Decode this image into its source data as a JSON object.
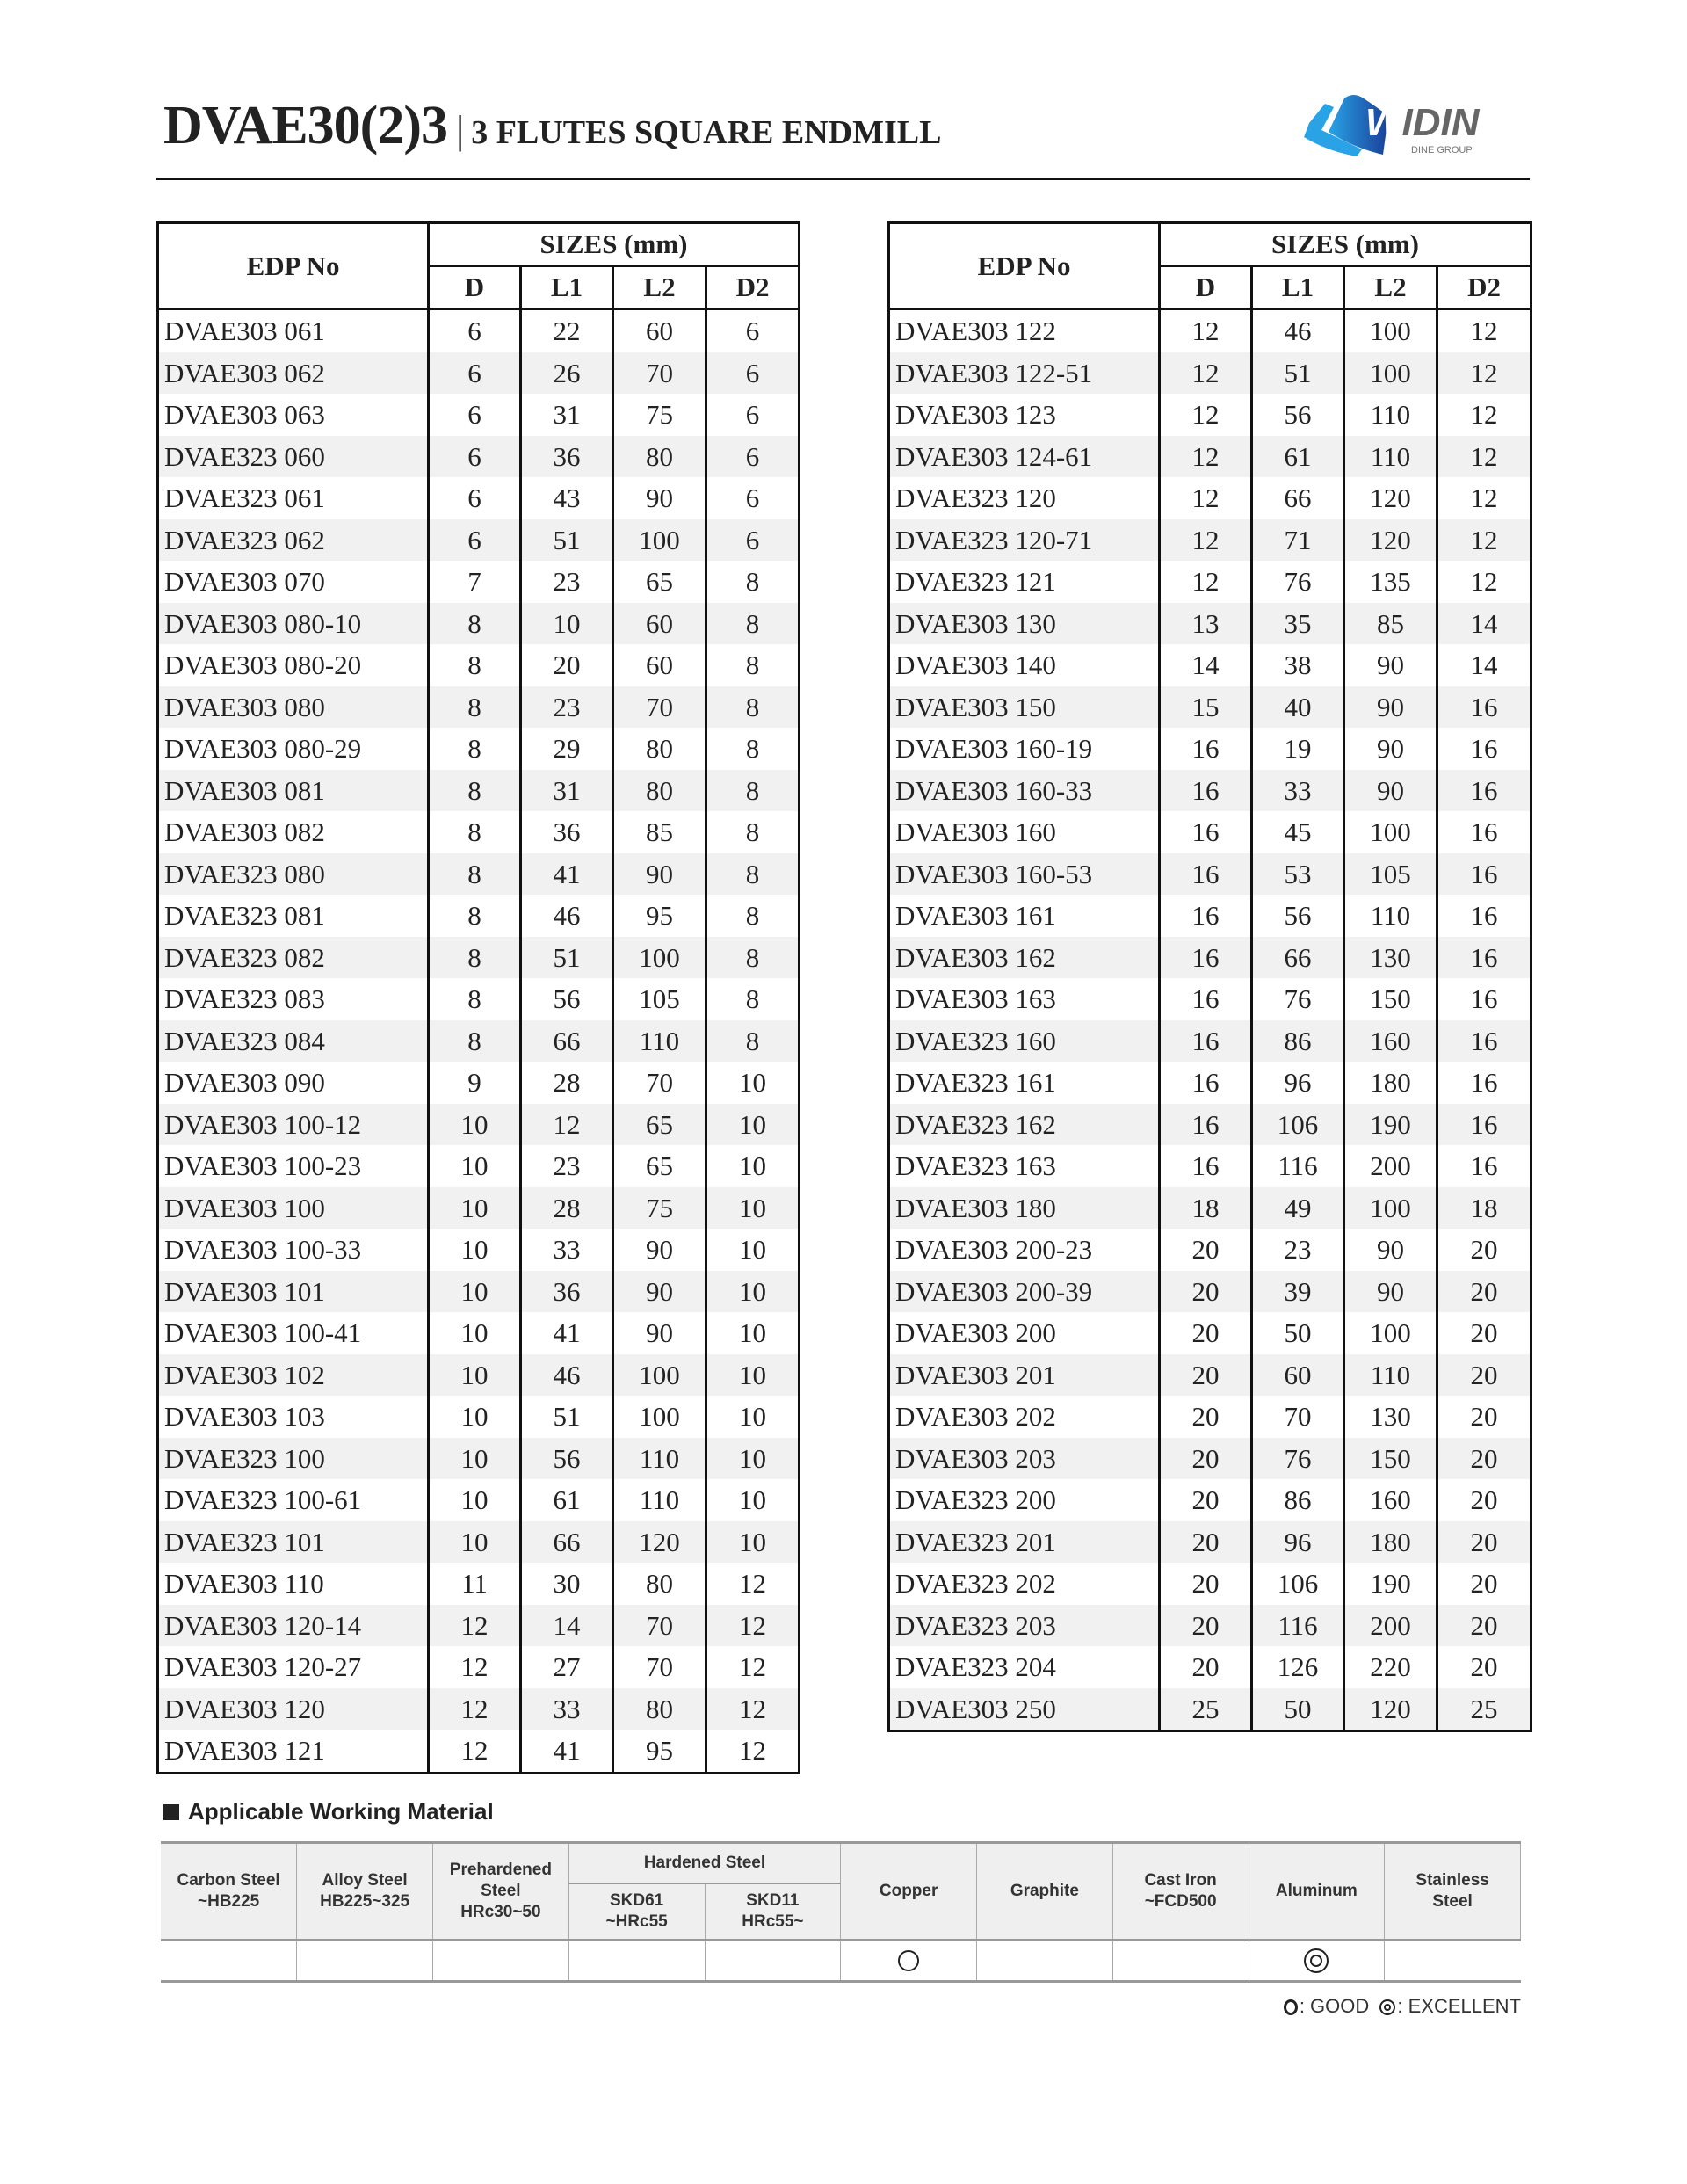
{
  "header": {
    "code": "DVAE30(2)3",
    "separator": "|",
    "subtitle": "3 FLUTES SQUARE ENDMILL",
    "logo": {
      "text": "WIDIN",
      "tagline": "DINE GROUP",
      "colors": [
        "#29a3e6",
        "#1a4fa8",
        "#666666"
      ]
    }
  },
  "size_table": {
    "edp_header": "EDP No",
    "sizes_header": "SIZES (mm)",
    "columns": [
      "D",
      "L1",
      "L2",
      "D2"
    ]
  },
  "left_rows": [
    [
      "DVAE303 061",
      "6",
      "22",
      "60",
      "6"
    ],
    [
      "DVAE303 062",
      "6",
      "26",
      "70",
      "6"
    ],
    [
      "DVAE303 063",
      "6",
      "31",
      "75",
      "6"
    ],
    [
      "DVAE323 060",
      "6",
      "36",
      "80",
      "6"
    ],
    [
      "DVAE323 061",
      "6",
      "43",
      "90",
      "6"
    ],
    [
      "DVAE323 062",
      "6",
      "51",
      "100",
      "6"
    ],
    [
      "DVAE303 070",
      "7",
      "23",
      "65",
      "8"
    ],
    [
      "DVAE303 080-10",
      "8",
      "10",
      "60",
      "8"
    ],
    [
      "DVAE303 080-20",
      "8",
      "20",
      "60",
      "8"
    ],
    [
      "DVAE303 080",
      "8",
      "23",
      "70",
      "8"
    ],
    [
      "DVAE303 080-29",
      "8",
      "29",
      "80",
      "8"
    ],
    [
      "DVAE303 081",
      "8",
      "31",
      "80",
      "8"
    ],
    [
      "DVAE303 082",
      "8",
      "36",
      "85",
      "8"
    ],
    [
      "DVAE323 080",
      "8",
      "41",
      "90",
      "8"
    ],
    [
      "DVAE323 081",
      "8",
      "46",
      "95",
      "8"
    ],
    [
      "DVAE323 082",
      "8",
      "51",
      "100",
      "8"
    ],
    [
      "DVAE323 083",
      "8",
      "56",
      "105",
      "8"
    ],
    [
      "DVAE323 084",
      "8",
      "66",
      "110",
      "8"
    ],
    [
      "DVAE303 090",
      "9",
      "28",
      "70",
      "10"
    ],
    [
      "DVAE303 100-12",
      "10",
      "12",
      "65",
      "10"
    ],
    [
      "DVAE303 100-23",
      "10",
      "23",
      "65",
      "10"
    ],
    [
      "DVAE303 100",
      "10",
      "28",
      "75",
      "10"
    ],
    [
      "DVAE303 100-33",
      "10",
      "33",
      "90",
      "10"
    ],
    [
      "DVAE303 101",
      "10",
      "36",
      "90",
      "10"
    ],
    [
      "DVAE303 100-41",
      "10",
      "41",
      "90",
      "10"
    ],
    [
      "DVAE303 102",
      "10",
      "46",
      "100",
      "10"
    ],
    [
      "DVAE303 103",
      "10",
      "51",
      "100",
      "10"
    ],
    [
      "DVAE323 100",
      "10",
      "56",
      "110",
      "10"
    ],
    [
      "DVAE323 100-61",
      "10",
      "61",
      "110",
      "10"
    ],
    [
      "DVAE323 101",
      "10",
      "66",
      "120",
      "10"
    ],
    [
      "DVAE303 110",
      "11",
      "30",
      "80",
      "12"
    ],
    [
      "DVAE303 120-14",
      "12",
      "14",
      "70",
      "12"
    ],
    [
      "DVAE303 120-27",
      "12",
      "27",
      "70",
      "12"
    ],
    [
      "DVAE303 120",
      "12",
      "33",
      "80",
      "12"
    ],
    [
      "DVAE303 121",
      "12",
      "41",
      "95",
      "12"
    ]
  ],
  "right_rows": [
    [
      "DVAE303 122",
      "12",
      "46",
      "100",
      "12"
    ],
    [
      "DVAE303 122-51",
      "12",
      "51",
      "100",
      "12"
    ],
    [
      "DVAE303 123",
      "12",
      "56",
      "110",
      "12"
    ],
    [
      "DVAE303 124-61",
      "12",
      "61",
      "110",
      "12"
    ],
    [
      "DVAE323 120",
      "12",
      "66",
      "120",
      "12"
    ],
    [
      "DVAE323 120-71",
      "12",
      "71",
      "120",
      "12"
    ],
    [
      "DVAE323 121",
      "12",
      "76",
      "135",
      "12"
    ],
    [
      "DVAE303 130",
      "13",
      "35",
      "85",
      "14"
    ],
    [
      "DVAE303 140",
      "14",
      "38",
      "90",
      "14"
    ],
    [
      "DVAE303 150",
      "15",
      "40",
      "90",
      "16"
    ],
    [
      "DVAE303 160-19",
      "16",
      "19",
      "90",
      "16"
    ],
    [
      "DVAE303 160-33",
      "16",
      "33",
      "90",
      "16"
    ],
    [
      "DVAE303 160",
      "16",
      "45",
      "100",
      "16"
    ],
    [
      "DVAE303 160-53",
      "16",
      "53",
      "105",
      "16"
    ],
    [
      "DVAE303 161",
      "16",
      "56",
      "110",
      "16"
    ],
    [
      "DVAE303 162",
      "16",
      "66",
      "130",
      "16"
    ],
    [
      "DVAE303 163",
      "16",
      "76",
      "150",
      "16"
    ],
    [
      "DVAE323 160",
      "16",
      "86",
      "160",
      "16"
    ],
    [
      "DVAE323 161",
      "16",
      "96",
      "180",
      "16"
    ],
    [
      "DVAE323 162",
      "16",
      "106",
      "190",
      "16"
    ],
    [
      "DVAE323 163",
      "16",
      "116",
      "200",
      "16"
    ],
    [
      "DVAE303 180",
      "18",
      "49",
      "100",
      "18"
    ],
    [
      "DVAE303 200-23",
      "20",
      "23",
      "90",
      "20"
    ],
    [
      "DVAE303 200-39",
      "20",
      "39",
      "90",
      "20"
    ],
    [
      "DVAE303 200",
      "20",
      "50",
      "100",
      "20"
    ],
    [
      "DVAE303 201",
      "20",
      "60",
      "110",
      "20"
    ],
    [
      "DVAE303 202",
      "20",
      "70",
      "130",
      "20"
    ],
    [
      "DVAE303 203",
      "20",
      "76",
      "150",
      "20"
    ],
    [
      "DVAE323 200",
      "20",
      "86",
      "160",
      "20"
    ],
    [
      "DVAE323 201",
      "20",
      "96",
      "180",
      "20"
    ],
    [
      "DVAE323 202",
      "20",
      "106",
      "190",
      "20"
    ],
    [
      "DVAE323 203",
      "20",
      "116",
      "200",
      "20"
    ],
    [
      "DVAE323 204",
      "20",
      "126",
      "220",
      "20"
    ],
    [
      "DVAE303 250",
      "25",
      "50",
      "120",
      "25"
    ]
  ],
  "material": {
    "title": "Applicable Working Material",
    "carbon": [
      "Carbon Steel",
      "~HB225"
    ],
    "alloy": [
      "Alloy Steel",
      "HB225~325"
    ],
    "prehardened": [
      "Prehardened",
      "Steel",
      "HRc30~50"
    ],
    "hardened": "Hardened Steel",
    "skd61": [
      "SKD61",
      "~HRc55"
    ],
    "skd11": [
      "SKD11",
      "HRc55~"
    ],
    "copper": "Copper",
    "graphite": "Graphite",
    "castiron": [
      "Cast Iron",
      "~FCD500"
    ],
    "aluminum": "Aluminum",
    "stainless": [
      "Stainless",
      "Steel"
    ],
    "ratings": [
      "",
      "",
      "",
      "",
      "",
      "good",
      "",
      "",
      "excellent",
      ""
    ],
    "legend": {
      "good": ": GOOD",
      "excellent": ": EXCELLENT"
    }
  }
}
